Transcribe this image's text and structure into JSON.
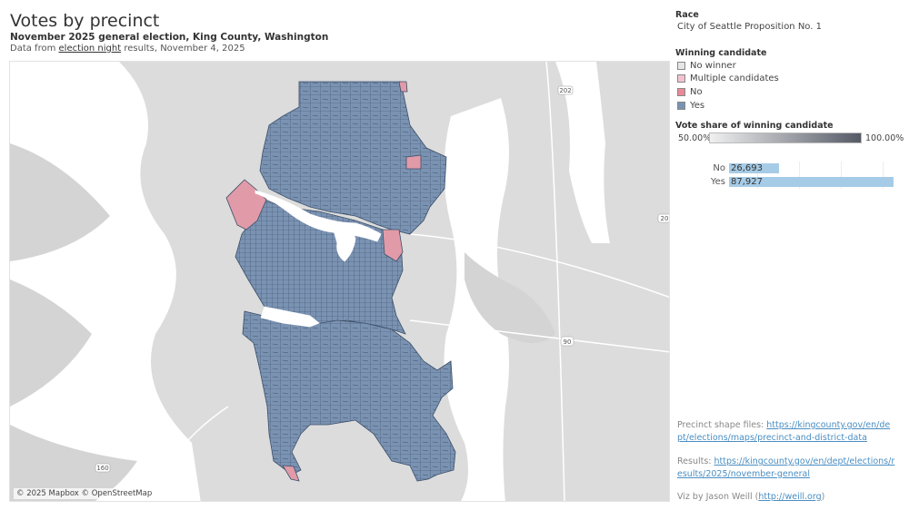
{
  "header": {
    "title": "Votes by precinct",
    "subtitle": "November 2025 general election, King County, Washington",
    "source_prefix": "Data from ",
    "source_link": "election night",
    "source_suffix": " results, November 4, 2025"
  },
  "map": {
    "attribution": "© 2025 Mapbox © OpenStreetMap",
    "road_labels": [
      "202",
      "160",
      "90",
      "20"
    ],
    "colors": {
      "yes": "#7b93b3",
      "no": "#e19aa8",
      "land": "#dcdcdc",
      "water": "#ffffff",
      "precinct_stroke": "#3b4f68"
    }
  },
  "panel": {
    "race_label": "Race",
    "race_value": "City of Seattle Proposition No. 1",
    "winner_label": "Winning candidate",
    "legend": [
      {
        "label": "No winner",
        "color": "#e6e6e6"
      },
      {
        "label": "Multiple candidates",
        "color": "#f2c3cf"
      },
      {
        "label": "No",
        "color": "#e88a98"
      },
      {
        "label": "Yes",
        "color": "#7b93b3"
      }
    ],
    "share_label": "Vote share of winning candidate",
    "share_min": "50.00%",
    "share_max": "100.00%"
  },
  "chart_data": {
    "type": "bar",
    "orientation": "horizontal",
    "categories": [
      "No",
      "Yes"
    ],
    "values": [
      26693,
      87927
    ],
    "value_labels": [
      "26,693",
      "87,927"
    ],
    "xlim": [
      0,
      87927
    ]
  },
  "footer": {
    "precinct_prefix": "Precinct shape files: ",
    "precinct_link": "https://kingcounty.gov/en/dept/elections/maps/precinct-and-district-data",
    "results_prefix": "Results: ",
    "results_link": "https://kingcounty.gov/en/dept/elections/results/2025/november-general",
    "viz_prefix": "Viz by Jason Weill (",
    "viz_link": "http://weill.org",
    "viz_suffix": ")"
  }
}
